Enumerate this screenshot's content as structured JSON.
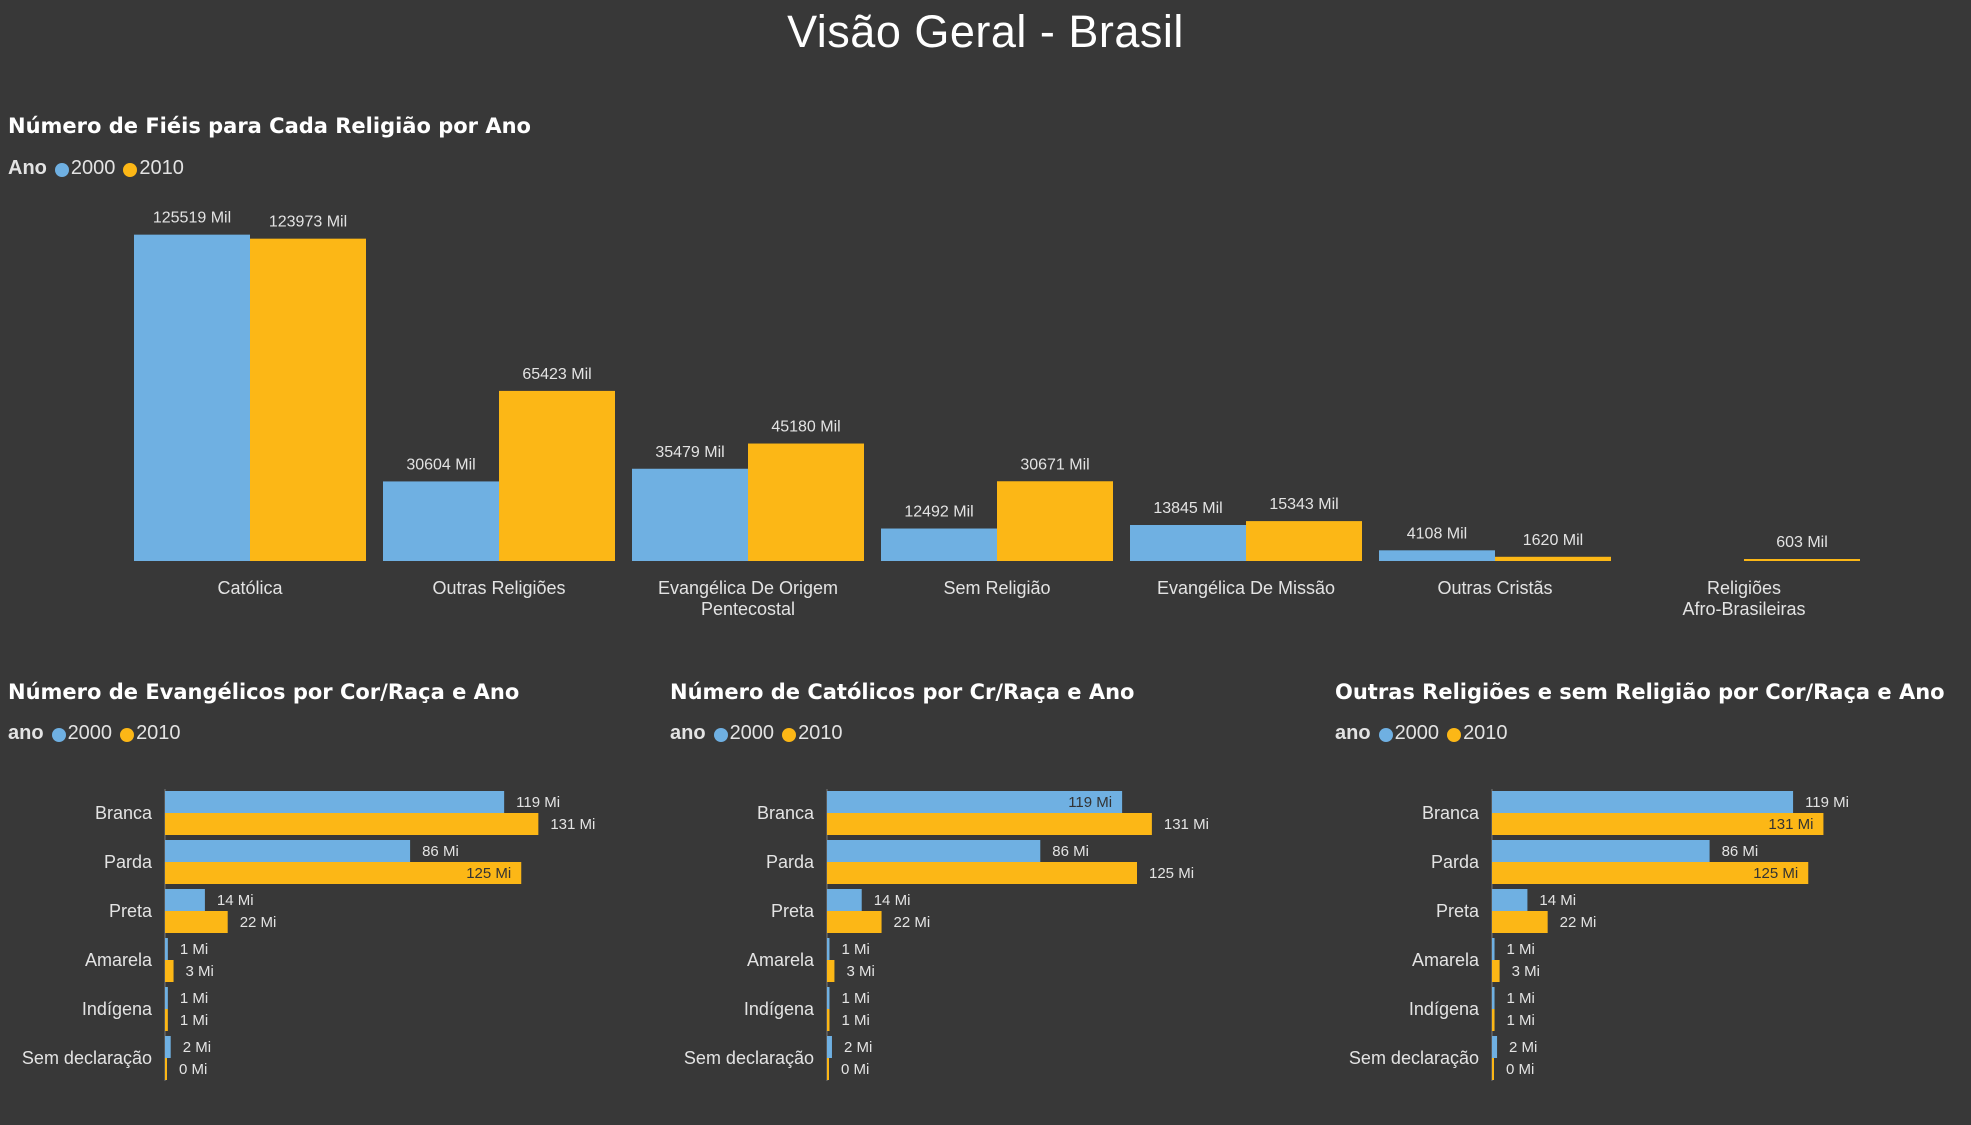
{
  "page": {
    "title": "Visão Geral - Brasil"
  },
  "colors": {
    "background": "#383838",
    "series_2000": "#6fb0e2",
    "series_2010": "#fcb716",
    "text": "#e3e3e3"
  },
  "legend_dot_icon": "circle",
  "chart_data": [
    {
      "id": "religions",
      "type": "bar",
      "orientation": "vertical",
      "title": "Número de Fiéis para Cada Religião por Ano",
      "legend_title": "Ano",
      "legend_position": "top-left",
      "categories": [
        "Católica",
        "Outras Religiões",
        "Evangélica De Origem Pentecostal",
        "Sem Religião",
        "Evangélica De Missão",
        "Outras Cristãs",
        "Religiões Afro-Brasileiras"
      ],
      "series": [
        {
          "name": "2000",
          "values": [
            125519,
            30604,
            35479,
            12492,
            13845,
            4108,
            null
          ],
          "labels": [
            "125519 Mil",
            "30604 Mil",
            "35479 Mil",
            "12492 Mil",
            "13845 Mil",
            "4108 Mil",
            ""
          ]
        },
        {
          "name": "2010",
          "values": [
            123973,
            65423,
            45180,
            30671,
            15343,
            1620,
            603
          ],
          "labels": [
            "123973 Mil",
            "65423 Mil",
            "45180 Mil",
            "30671 Mil",
            "15343 Mil",
            "1620 Mil",
            "603 Mil"
          ]
        }
      ],
      "grid": false
    },
    {
      "id": "evangelicos",
      "type": "bar",
      "orientation": "horizontal",
      "title": "Número de Evangélicos por Cor/Raça e Ano",
      "legend_title": "ano",
      "legend_position": "top-left",
      "categories": [
        "Branca",
        "Parda",
        "Preta",
        "Amarela",
        "Indígena",
        "Sem declaração"
      ],
      "series": [
        {
          "name": "2000",
          "values": [
            119,
            86,
            14,
            1,
            1,
            2
          ],
          "labels": [
            "119 Mi",
            "86 Mi",
            "14 Mi",
            "1 Mi",
            "1 Mi",
            "2 Mi"
          ]
        },
        {
          "name": "2010",
          "values": [
            131,
            125,
            22,
            3,
            1,
            0
          ],
          "labels": [
            "131 Mi",
            "125 Mi",
            "22 Mi",
            "3 Mi",
            "1 Mi",
            "0 Mi"
          ]
        }
      ],
      "grid": false
    },
    {
      "id": "catolicos",
      "type": "bar",
      "orientation": "horizontal",
      "title": "Número de Católicos por Cr/Raça e Ano",
      "legend_title": "ano",
      "legend_position": "top-left",
      "categories": [
        "Branca",
        "Parda",
        "Preta",
        "Amarela",
        "Indígena",
        "Sem declaração"
      ],
      "series": [
        {
          "name": "2000",
          "values": [
            119,
            86,
            14,
            1,
            1,
            2
          ],
          "labels": [
            "119 Mi",
            "86 Mi",
            "14 Mi",
            "1 Mi",
            "1 Mi",
            "2 Mi"
          ]
        },
        {
          "name": "2010",
          "values": [
            131,
            125,
            22,
            3,
            1,
            0
          ],
          "labels": [
            "131 Mi",
            "125 Mi",
            "22 Mi",
            "3 Mi",
            "1 Mi",
            "0 Mi"
          ]
        }
      ],
      "grid": false
    },
    {
      "id": "outras",
      "type": "bar",
      "orientation": "horizontal",
      "title": "Outras Religiões e sem Religião por Cor/Raça e Ano",
      "legend_title": "ano",
      "legend_position": "top-left",
      "categories": [
        "Branca",
        "Parda",
        "Preta",
        "Amarela",
        "Indígena",
        "Sem declaração"
      ],
      "series": [
        {
          "name": "2000",
          "values": [
            119,
            86,
            14,
            1,
            1,
            2
          ],
          "labels": [
            "119 Mi",
            "86 Mi",
            "14 Mi",
            "1 Mi",
            "1 Mi",
            "2 Mi"
          ]
        },
        {
          "name": "2010",
          "values": [
            131,
            125,
            22,
            3,
            1,
            0
          ],
          "labels": [
            "131 Mi",
            "125 Mi",
            "22 Mi",
            "3 Mi",
            "1 Mi",
            "0 Mi"
          ]
        }
      ],
      "grid": false
    }
  ]
}
